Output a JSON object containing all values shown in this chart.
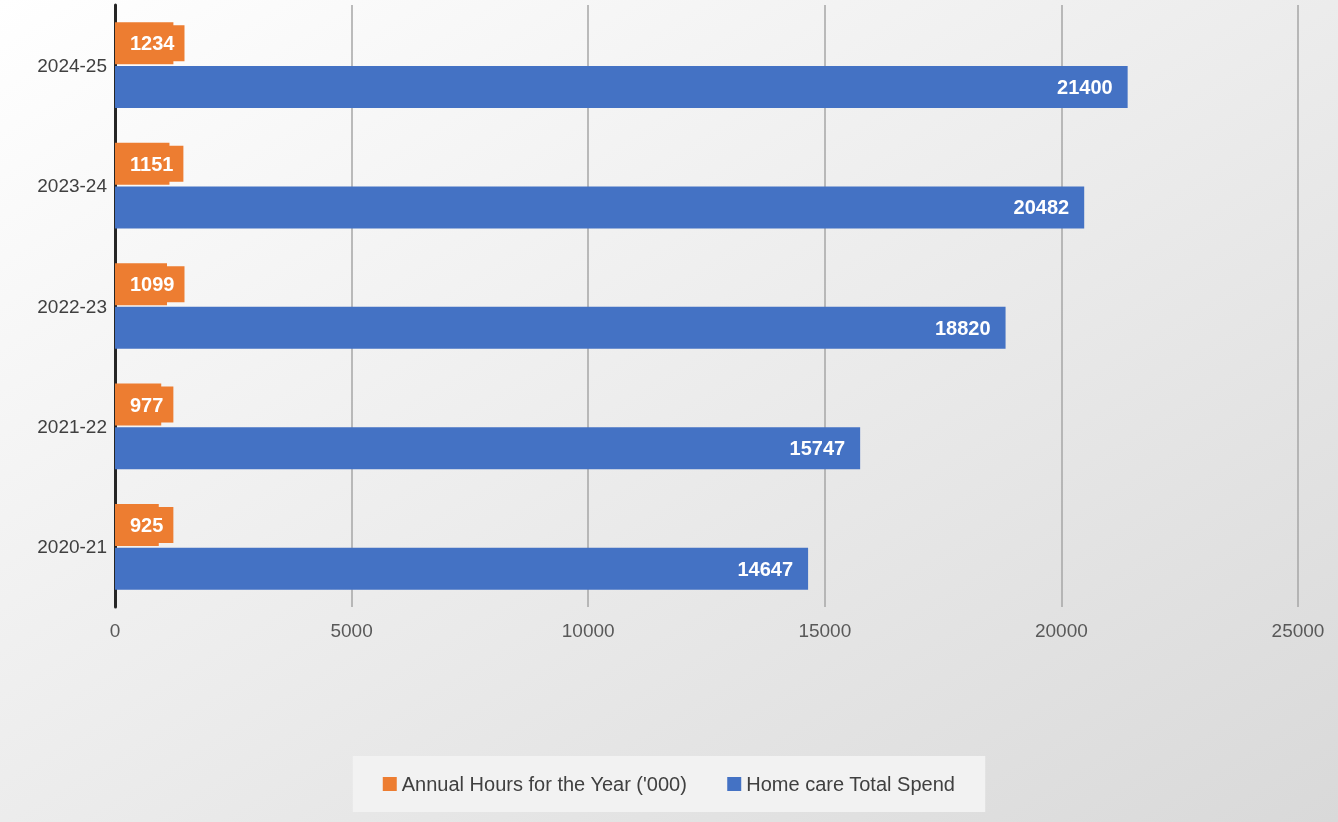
{
  "chart_data": {
    "type": "bar",
    "orientation": "horizontal",
    "categories": [
      "2024-25",
      "2023-24",
      "2022-23",
      "2021-22",
      "2020-21"
    ],
    "series": [
      {
        "name": "Annual Hours for the Year ('000)",
        "color": "#ed7d31",
        "values": [
          1234,
          1151,
          1099,
          977,
          925
        ]
      },
      {
        "name": "Home care Total Spend",
        "color": "#4472c4",
        "values": [
          21400,
          20482,
          18820,
          15747,
          14647
        ]
      }
    ],
    "xlim": [
      0,
      25000
    ],
    "xticks": [
      0,
      5000,
      10000,
      15000,
      20000,
      25000
    ],
    "grid": "x",
    "legend": "bottom",
    "data_labels": true
  }
}
